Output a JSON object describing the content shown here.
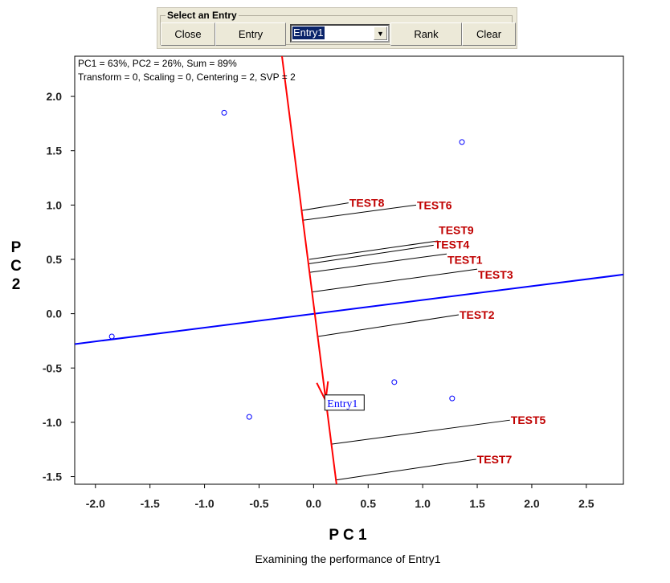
{
  "toolbar": {
    "group_label": "Select an Entry",
    "close": "Close",
    "entry": "Entry",
    "selected_entry": "Entry1",
    "rank": "Rank",
    "clear": "Clear"
  },
  "chart_data": {
    "type": "scatter",
    "info_line1": "PC1 = 63%, PC2 = 26%, Sum = 89%",
    "info_line2": "Transform = 0, Scaling = 0, Centering = 2, SVP = 2",
    "xlabel": "P C 1",
    "ylabel": [
      "P",
      "C",
      "2"
    ],
    "caption": "Examining the performance of Entry1",
    "xlim": [
      -2.19,
      2.84
    ],
    "ylim": [
      -1.57,
      2.37
    ],
    "xticks": [
      "-2.0",
      "-1.5",
      "-1.0",
      "-0.5",
      "0.0",
      "0.5",
      "1.0",
      "1.5",
      "2.0",
      "2.5"
    ],
    "xtick_values": [
      -2,
      -1.5,
      -1,
      -0.5,
      0,
      0.5,
      1,
      1.5,
      2,
      2.5
    ],
    "yticks": [
      "2.0",
      "1.5",
      "1.0",
      "0.5",
      "0.0",
      "-0.5",
      "-1.0",
      "-1.5"
    ],
    "ytick_values": [
      2,
      1.5,
      1,
      0.5,
      0,
      -0.5,
      -1,
      -1.5
    ],
    "entry_points": [
      [
        -1.85,
        -0.21
      ],
      [
        -0.82,
        1.85
      ],
      [
        1.36,
        1.58
      ],
      [
        0.74,
        -0.63
      ],
      [
        1.27,
        -0.78
      ],
      [
        -0.59,
        -0.95
      ]
    ],
    "entry_axis": {
      "from": [
        -2.19,
        -0.28
      ],
      "to": [
        2.84,
        0.36
      ],
      "color": "#0000ff"
    },
    "test_axis": {
      "from": [
        -0.29,
        2.37
      ],
      "to": [
        0.21,
        -1.57
      ],
      "color": "#ff0000"
    },
    "entry_marker": {
      "label": "Entry1",
      "at": [
        0.11,
        -0.8
      ]
    },
    "tests": [
      {
        "name": "TEST8",
        "from": [
          -0.11,
          0.95
        ],
        "to": [
          0.32,
          1.02
        ]
      },
      {
        "name": "TEST6",
        "from": [
          -0.1,
          0.86
        ],
        "to": [
          0.94,
          1.0
        ]
      },
      {
        "name": "TEST9",
        "from": [
          -0.04,
          0.5
        ],
        "to": [
          1.14,
          0.67
        ]
      },
      {
        "name": "TEST4",
        "from": [
          -0.04,
          0.46
        ],
        "to": [
          1.1,
          0.63
        ]
      },
      {
        "name": "TEST1",
        "from": [
          -0.04,
          0.38
        ],
        "to": [
          1.22,
          0.55
        ]
      },
      {
        "name": "TEST3",
        "from": [
          -0.01,
          0.2
        ],
        "to": [
          1.5,
          0.41
        ]
      },
      {
        "name": "TEST2",
        "from": [
          0.04,
          -0.21
        ],
        "to": [
          1.33,
          -0.01
        ]
      },
      {
        "name": "TEST5",
        "from": [
          0.17,
          -1.2
        ],
        "to": [
          1.8,
          -0.98
        ]
      },
      {
        "name": "TEST7",
        "from": [
          0.21,
          -1.53
        ],
        "to": [
          1.49,
          -1.34
        ]
      }
    ]
  }
}
